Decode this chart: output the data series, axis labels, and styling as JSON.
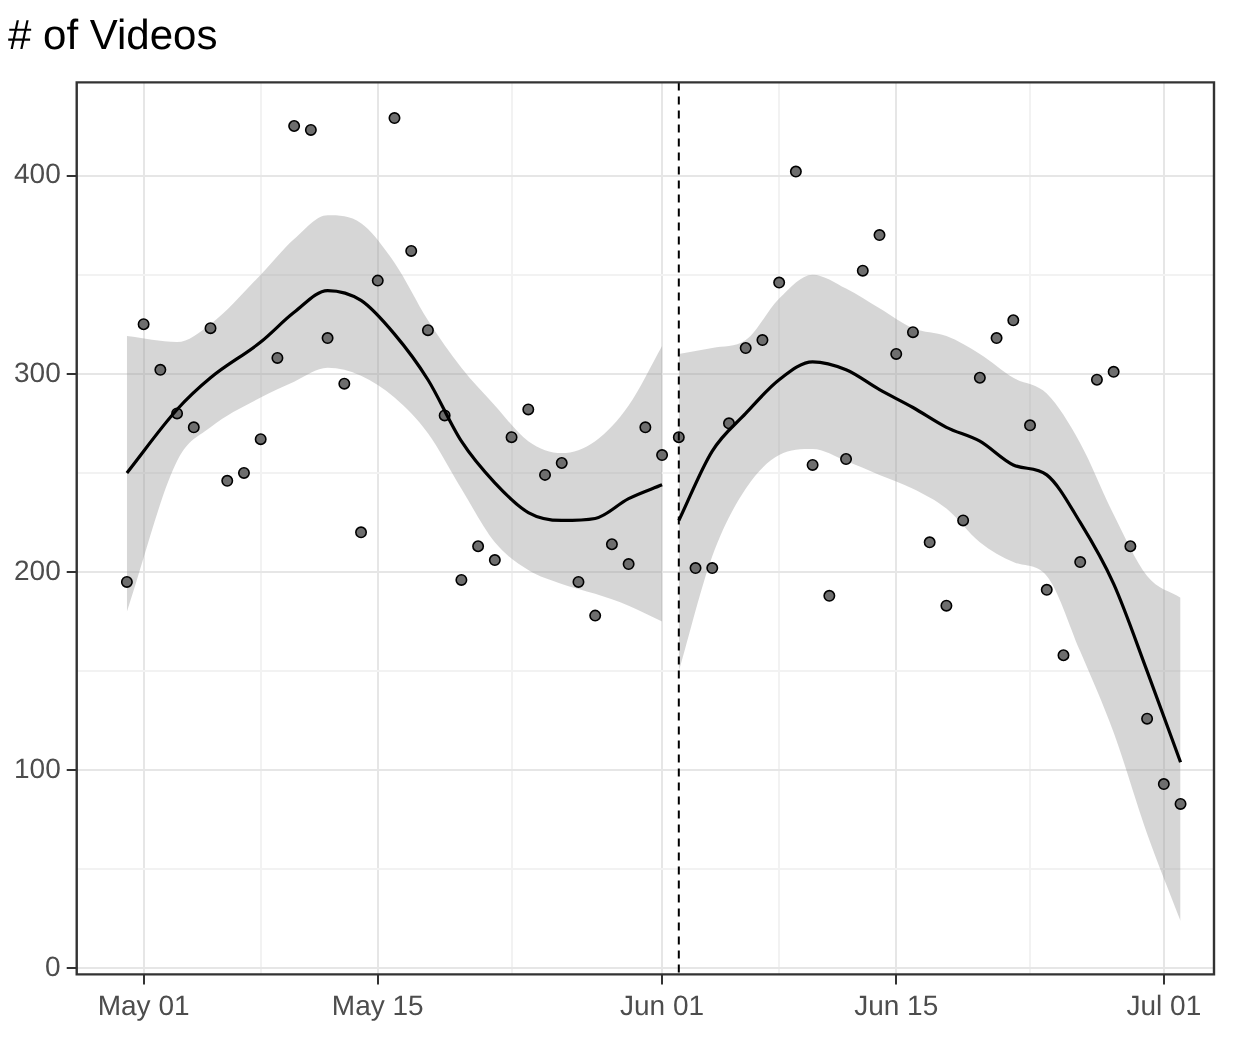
{
  "chart_data": {
    "type": "scatter",
    "title": "# of Videos",
    "xlim": [
      "--04-27",
      "--07-04"
    ],
    "ylim": [
      -3,
      447
    ],
    "xticks": [
      {
        "value": "--05-01",
        "label": "May 01"
      },
      {
        "value": "--05-08",
        "label": null
      },
      {
        "value": "--05-15",
        "label": "May 15"
      },
      {
        "value": "--05-23",
        "label": null
      },
      {
        "value": "--06-01",
        "label": "Jun 01"
      },
      {
        "value": "--06-08",
        "label": null
      },
      {
        "value": "--06-15",
        "label": "Jun 15"
      },
      {
        "value": "--06-23",
        "label": null
      },
      {
        "value": "--07-01",
        "label": "Jul 01"
      }
    ],
    "yticks": [
      0,
      {
        "value": 50,
        "label": null
      },
      100,
      {
        "value": 150,
        "label": null
      },
      200,
      {
        "value": 250,
        "label": null
      },
      300,
      {
        "value": 350,
        "label": null
      },
      400
    ],
    "grid": true,
    "ref_lines": [
      {
        "axis": "x",
        "value": "--06-02",
        "color": "#000000",
        "line_style": "dashed"
      }
    ],
    "series": [
      {
        "color": "#6e6e6e",
        "marker": "circle",
        "x": [
          "--04-30",
          "--05-01",
          "--05-02",
          "--05-03",
          "--05-04",
          "--05-05",
          "--05-06",
          "--05-07",
          "--05-08",
          "--05-09",
          "--05-10",
          "--05-11",
          "--05-12",
          "--05-13",
          "--05-14",
          "--05-15",
          "--05-16",
          "--05-17",
          "--05-18",
          "--05-19",
          "--05-20",
          "--05-21",
          "--05-22",
          "--05-23",
          "--05-24",
          "--05-25",
          "--05-26",
          "--05-27",
          "--05-28",
          "--05-29",
          "--05-30",
          "--05-31",
          "--06-01",
          "--06-02",
          "--06-03",
          "--06-04",
          "--06-05",
          "--06-06",
          "--06-07",
          "--06-08",
          "--06-09",
          "--06-10",
          "--06-11",
          "--06-12",
          "--06-13",
          "--06-14",
          "--06-15",
          "--06-16",
          "--06-17",
          "--06-18",
          "--06-19",
          "--06-20",
          "--06-21",
          "--06-22",
          "--06-23",
          "--06-24",
          "--06-25",
          "--06-26",
          "--06-27",
          "--06-28",
          "--06-29",
          "--06-30",
          "--07-01",
          "--07-02"
        ],
        "values": [
          195,
          325,
          302,
          280,
          273,
          323,
          246,
          250,
          267,
          308,
          425,
          423,
          318,
          295,
          220,
          347,
          429,
          362,
          322,
          279,
          196,
          213,
          206,
          268,
          282,
          249,
          255,
          195,
          178,
          214,
          204,
          273,
          259,
          268,
          202,
          202,
          275,
          313,
          317,
          346,
          402,
          254,
          188,
          257,
          352,
          370,
          310,
          321,
          215,
          183,
          226,
          298,
          318,
          327,
          274,
          191,
          158,
          205,
          297,
          301,
          213,
          126,
          93,
          83
        ]
      },
      {
        "type": "line",
        "color": "#000000",
        "marker": "none",
        "x": [
          "--04-30",
          "--05-03",
          "--05-05",
          "--05-08",
          "--05-10",
          "--05-12",
          "--05-14",
          "--05-16",
          "--05-18",
          "--05-20",
          "--05-22",
          "--05-24",
          "--05-26",
          "--05-28",
          "--05-30",
          "--06-01"
        ],
        "values": [
          250,
          282,
          298,
          316,
          331,
          342,
          337,
          320,
          297,
          266,
          245,
          230,
          226,
          227,
          237,
          244
        ],
        "lower": [
          180,
          256,
          273,
          288,
          296,
          303,
          299,
          288,
          270,
          242,
          215,
          201,
          194,
          189,
          183,
          175
        ],
        "upper": [
          319,
          316,
          325,
          350,
          368,
          380,
          376,
          356,
          327,
          303,
          284,
          266,
          260,
          266,
          284,
          314
        ]
      },
      {
        "type": "line",
        "color": "#000000",
        "marker": "none",
        "x": [
          "--06-02",
          "--06-04",
          "--06-06",
          "--06-08",
          "--06-10",
          "--06-12",
          "--06-14",
          "--06-16",
          "--06-18",
          "--06-20",
          "--06-22",
          "--06-24",
          "--06-26",
          "--06-28",
          "--06-30",
          "--07-02"
        ],
        "values": [
          226,
          261,
          280,
          297,
          306,
          302,
          292,
          283,
          273,
          266,
          254,
          249,
          225,
          194,
          150,
          104
        ],
        "lower": [
          150,
          208,
          242,
          259,
          262,
          256,
          249,
          242,
          232,
          215,
          205,
          198,
          160,
          119,
          68,
          24
        ],
        "upper": [
          310,
          313,
          317,
          338,
          350,
          343,
          333,
          323,
          319,
          310,
          298,
          290,
          265,
          229,
          198,
          187
        ]
      }
    ]
  }
}
